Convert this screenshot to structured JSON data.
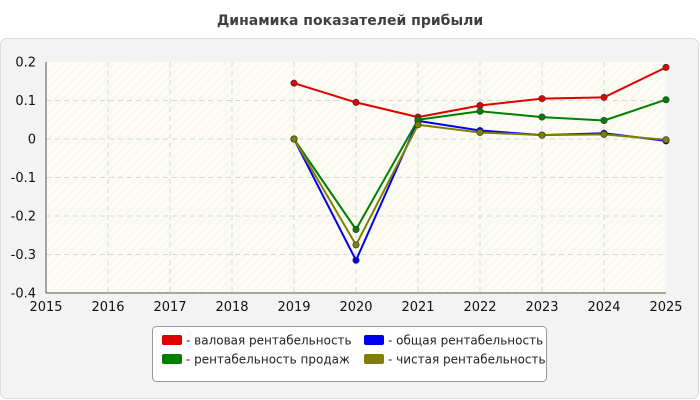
{
  "chart_data": {
    "type": "line",
    "title": "Динамика показателей прибыли",
    "xlabel": "",
    "ylabel": "",
    "x": [
      2015,
      2016,
      2017,
      2018,
      2019,
      2020,
      2021,
      2022,
      2023,
      2024,
      2025
    ],
    "x_ticks": [
      "2015",
      "2016",
      "2017",
      "2018",
      "2019",
      "2020",
      "2021",
      "2022",
      "2023",
      "2024",
      "2025"
    ],
    "xlim": [
      2015,
      2025
    ],
    "y_ticks": [
      "0.2",
      "0.1",
      "0",
      "-0.1",
      "-0.2",
      "-0.3",
      "-0.4"
    ],
    "ylim": [
      -0.4,
      0.2
    ],
    "grid": true,
    "legend_position": "bottom",
    "series": [
      {
        "name": "- валовая рентабельность",
        "color": "#e00000",
        "points": [
          [
            2019,
            0.145
          ],
          [
            2020,
            0.095
          ],
          [
            2021,
            0.057
          ],
          [
            2022,
            0.087
          ],
          [
            2023,
            0.105
          ],
          [
            2024,
            0.108
          ],
          [
            2025,
            0.186
          ]
        ]
      },
      {
        "name": "- общая рентабельность",
        "color": "#0000ee",
        "points": [
          [
            2019,
            0.0
          ],
          [
            2020,
            -0.315
          ],
          [
            2021,
            0.047
          ],
          [
            2022,
            0.022
          ],
          [
            2023,
            0.01
          ],
          [
            2024,
            0.015
          ],
          [
            2025,
            -0.005
          ]
        ]
      },
      {
        "name": "- рентабельность продаж",
        "color": "#008000",
        "points": [
          [
            2019,
            0.0
          ],
          [
            2020,
            -0.235
          ],
          [
            2021,
            0.05
          ],
          [
            2022,
            0.072
          ],
          [
            2023,
            0.057
          ],
          [
            2024,
            0.048
          ],
          [
            2025,
            0.102
          ]
        ]
      },
      {
        "name": "- чистая рентабельность",
        "color": "#808000",
        "points": [
          [
            2019,
            0.0
          ],
          [
            2020,
            -0.275
          ],
          [
            2021,
            0.037
          ],
          [
            2022,
            0.017
          ],
          [
            2023,
            0.01
          ],
          [
            2024,
            0.012
          ],
          [
            2025,
            -0.002
          ]
        ]
      }
    ]
  }
}
